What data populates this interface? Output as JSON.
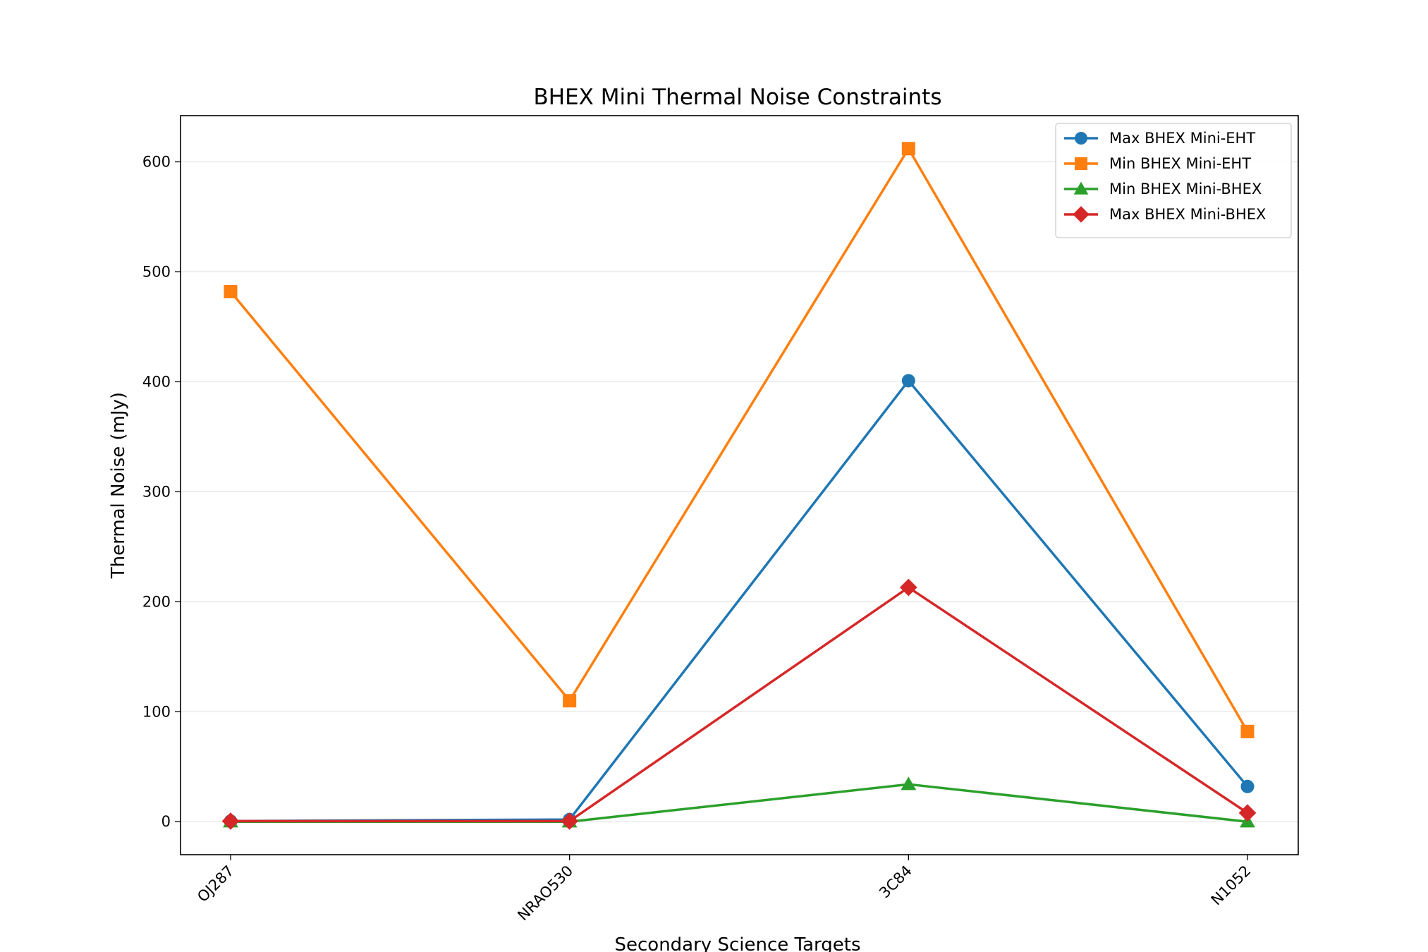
{
  "chart_data": {
    "type": "line",
    "title": "BHEX Mini Thermal Noise Constraints",
    "xlabel": "Secondary Science Targets",
    "ylabel": "Thermal Noise (mJy)",
    "categories": [
      "OJ287",
      "NRAO530",
      "3C84",
      "N1052"
    ],
    "ylim": [
      -30,
      642
    ],
    "yticks": [
      0,
      100,
      200,
      300,
      400,
      500,
      600
    ],
    "grid": "y",
    "legend_position": "top-right",
    "series": [
      {
        "name": "Max BHEX Mini-EHT",
        "values": [
          0.5,
          2,
          401,
          32
        ],
        "color": "#1f77b4",
        "marker": "circle"
      },
      {
        "name": "Min BHEX Mini-EHT",
        "values": [
          482,
          110,
          612,
          82
        ],
        "color": "#ff7f0e",
        "marker": "square"
      },
      {
        "name": "Min BHEX Mini-BHEX",
        "values": [
          0,
          0,
          34,
          0
        ],
        "color": "#2ca02c",
        "marker": "triangle"
      },
      {
        "name": "Max BHEX Mini-BHEX",
        "values": [
          0.5,
          0.5,
          213,
          8
        ],
        "color": "#d62728",
        "marker": "diamond"
      }
    ]
  }
}
